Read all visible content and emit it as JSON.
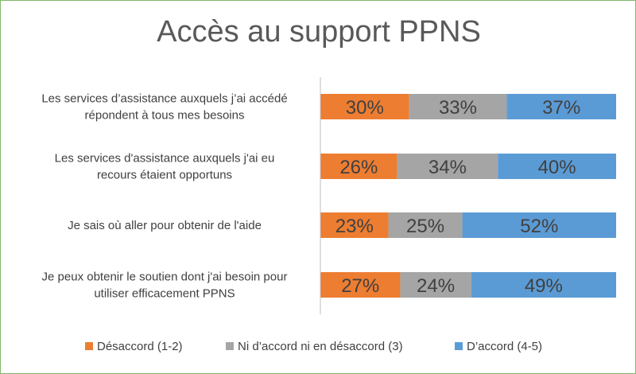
{
  "chart_data": {
    "type": "bar",
    "orientation": "horizontal",
    "stacked": true,
    "title": "Accès au support PPNS",
    "categories": [
      [
        "Les services d’assistance auxquels j’ai accédé",
        "répondent à tous mes besoins"
      ],
      [
        "Les services d'assistance auxquels j'ai eu",
        "recours étaient opportuns"
      ],
      [
        "Je sais où aller pour obtenir de l'aide"
      ],
      [
        "Je peux obtenir le soutien dont j'ai besoin pour",
        "utiliser efficacement PPNS"
      ]
    ],
    "series": [
      {
        "name": "Désaccord (1-2)",
        "color": "#ed7d31",
        "values": [
          30,
          26,
          23,
          27
        ],
        "labels": [
          "30%",
          "26%",
          "23%",
          "27%"
        ]
      },
      {
        "name": "Ni d’accord ni en désaccord (3)",
        "color": "#a5a5a5",
        "values": [
          33,
          34,
          25,
          24
        ],
        "labels": [
          "33%",
          "34%",
          "25%",
          "24%"
        ]
      },
      {
        "name": "D’accord (4-5)",
        "color": "#5b9bd5",
        "values": [
          37,
          40,
          52,
          49
        ],
        "labels": [
          "37%",
          "40%",
          "52%",
          "49%"
        ]
      }
    ],
    "xlim": [
      0,
      100
    ],
    "legend": "bottom",
    "grid": false
  }
}
